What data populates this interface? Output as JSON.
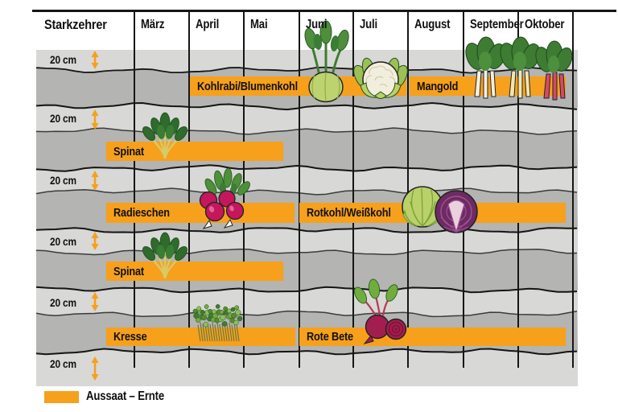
{
  "title": "Starkzehrer",
  "row_spacing_label": "20 cm",
  "legend": {
    "label": "Aussaat – Ernte"
  },
  "colors": {
    "bar_orange": "#F6A01B",
    "band_light": "#D8D8D6",
    "band_dark": "#B4B4B2",
    "line_black": "#161616"
  },
  "chart_data": {
    "type": "gantt",
    "title": "Starkzehrer",
    "x_labels": [
      "März",
      "April",
      "Mai",
      "Juni",
      "Juli",
      "August",
      "September",
      "Oktober"
    ],
    "x_axis_note": "columns are months März through Oktober; bars left of the März line begin before March",
    "row_spacing": "20 cm",
    "legend": "Aussaat – Ernte",
    "rows": [
      {
        "row": 1,
        "bars": [
          {
            "name": "Kohlrabi/Blumenkohl",
            "start_month": 4.0,
            "end_month": 8.0,
            "icons": [
              "kohlrabi",
              "blumenkohl"
            ]
          },
          {
            "name": "Mangold",
            "start_month": 8.0,
            "end_month": 10.9,
            "icons": [
              "mangold"
            ]
          }
        ]
      },
      {
        "row": 2,
        "bars": [
          {
            "name": "Spinat",
            "start_month": 2.5,
            "end_month": 5.7,
            "icons": [
              "spinat"
            ]
          }
        ]
      },
      {
        "row": 3,
        "bars": [
          {
            "name": "Radieschen",
            "start_month": 2.5,
            "end_month": 5.9,
            "icons": [
              "radieschen"
            ]
          },
          {
            "name": "Rotkohl/Weißkohl",
            "start_month": 6.0,
            "end_month": 10.9,
            "icons": [
              "rotkohl",
              "weisskohl"
            ]
          }
        ]
      },
      {
        "row": 4,
        "bars": [
          {
            "name": "Spinat",
            "start_month": 2.5,
            "end_month": 5.7,
            "icons": [
              "spinat"
            ]
          }
        ]
      },
      {
        "row": 5,
        "bars": [
          {
            "name": "Kresse",
            "start_month": 2.5,
            "end_month": 5.9,
            "icons": [
              "kresse"
            ]
          },
          {
            "name": "Rote Bete",
            "start_month": 6.0,
            "end_month": 10.9,
            "icons": [
              "rote-bete"
            ]
          }
        ]
      }
    ]
  }
}
